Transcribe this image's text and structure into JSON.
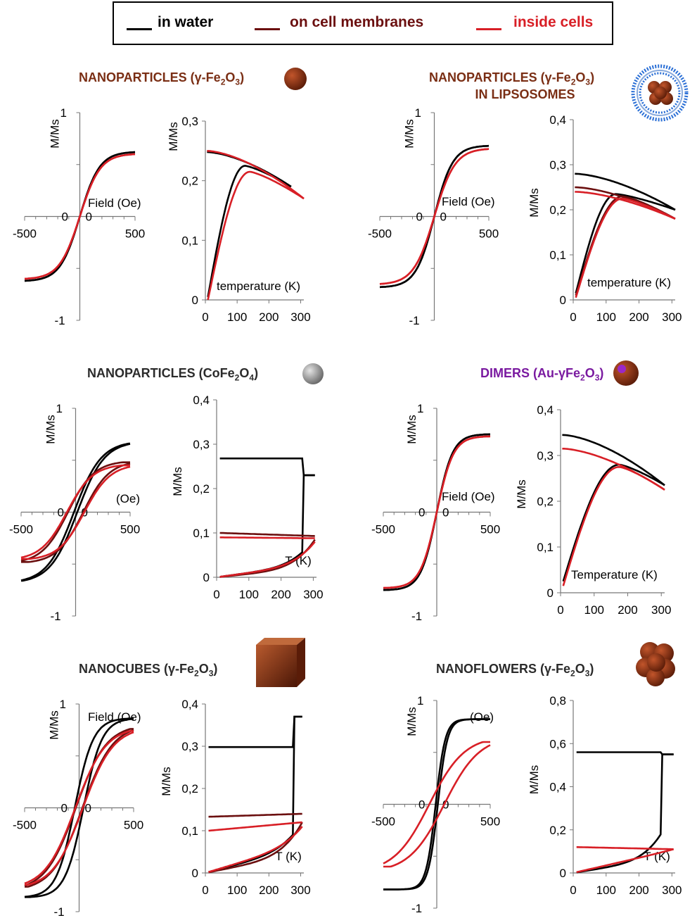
{
  "colors": {
    "water": "#000000",
    "membranes": "#6b0f0f",
    "inside": "#d81f26",
    "title_brown": "#7a2e14",
    "title_dark": "#2b2b2b",
    "title_purple": "#7a1aa0"
  },
  "legend": [
    {
      "label": "in water",
      "color": "#000000"
    },
    {
      "label": "on cell membranes",
      "color": "#6b0f0f"
    },
    {
      "label": "inside cells",
      "color": "#d81f26"
    }
  ],
  "panels": [
    {
      "title": "NANOPARTICLES (γ-Fe",
      "sub": "2",
      "title2": "O",
      "sub2": "3",
      "title3": ")",
      "line2": "",
      "color": "#7a2e14",
      "icon": "nanoparticle-sphere-icon"
    },
    {
      "title": "NANOPARTICLES (γ-Fe",
      "sub": "2",
      "title2": "O",
      "sub2": "3",
      "title3": ")",
      "line2": "IN LIPSOSOMES",
      "color": "#7a2e14",
      "icon": "liposome-icon"
    },
    {
      "title": "NANOPARTICLES (CoFe",
      "sub": "2",
      "title2": "O",
      "sub2": "4",
      "title3": ")",
      "line2": "",
      "color": "#2b2b2b",
      "icon": "cobalt-ferrite-sphere-icon"
    },
    {
      "title": "DIMERS (Au-γFe",
      "sub": "2",
      "title2": "O",
      "sub2": "3",
      "title3": ")",
      "line2": "",
      "color": "#7a1aa0",
      "icon": "dimer-sphere-icon"
    },
    {
      "title": "NANOCUBES (γ-Fe",
      "sub": "2",
      "title2": "O",
      "sub2": "3",
      "title3": ")",
      "line2": "",
      "color": "#2b2b2b",
      "icon": "nanocube-icon"
    },
    {
      "title": "NANOFLOWERS (γ-Fe",
      "sub": "2",
      "title2": "O",
      "sub2": "3",
      "title3": ")",
      "line2": "",
      "color": "#2b2b2b",
      "icon": "nanoflower-icon"
    }
  ],
  "chart_data": [
    {
      "type": "line",
      "panel": 1,
      "kind": "hysteresis",
      "ylabel": "M/Ms",
      "xlabel": "Field (Oe)",
      "xticks": [
        "-500",
        "0",
        "500"
      ],
      "yticks": [
        "1",
        "0",
        "-1"
      ],
      "xlim": [
        -500,
        500
      ],
      "ylim": [
        -1,
        1
      ],
      "series": [
        {
          "color": "#000000",
          "ms": 0.62,
          "w": 180,
          "hc": 0
        },
        {
          "color": "#d81f26",
          "ms": 0.6,
          "w": 185,
          "hc": 0
        }
      ]
    },
    {
      "type": "line",
      "panel": 1,
      "kind": "zfcfc",
      "ylabel": "M/Ms",
      "xlabel": "temperature (K)",
      "xticks": [
        "0",
        "100",
        "200",
        "300"
      ],
      "yticks": [
        "0,3",
        "0,2",
        "0,1",
        "0"
      ],
      "xlim": [
        0,
        310
      ],
      "ylim": [
        0,
        0.3
      ],
      "series": [
        {
          "color": "#000000",
          "fc0": 0.248,
          "tmax": 270,
          "fcEnd": 0.19,
          "tb": 125,
          "zfc0": 0.005,
          "peak": 0.225
        },
        {
          "color": "#d81f26",
          "fc0": 0.25,
          "tmax": 310,
          "fcEnd": 0.17,
          "tb": 140,
          "zfc0": 0.0,
          "peak": 0.215
        }
      ]
    },
    {
      "type": "line",
      "panel": 2,
      "kind": "hysteresis",
      "ylabel": "M/Ms",
      "xlabel": "Field (Oe)",
      "xticks": [
        "-500",
        "0",
        "500"
      ],
      "yticks": [
        "1",
        "0",
        "-1"
      ],
      "xlim": [
        -500,
        500
      ],
      "ylim": [
        -1,
        1
      ],
      "series": [
        {
          "color": "#000000",
          "ms": 0.68,
          "w": 170,
          "hc": 0
        },
        {
          "color": "#d81f26",
          "ms": 0.65,
          "w": 190,
          "hc": 0
        }
      ]
    },
    {
      "type": "line",
      "panel": 2,
      "kind": "zfcfc",
      "ylabel": "M/Ms",
      "xlabel": "temperature (K)",
      "xticks": [
        "0",
        "100",
        "200",
        "300"
      ],
      "yticks": [
        "0,4",
        "0,3",
        "0,2",
        "0,1",
        "0"
      ],
      "xlim": [
        0,
        310
      ],
      "ylim": [
        0,
        0.4
      ],
      "series": [
        {
          "color": "#000000",
          "fc0": 0.28,
          "tmax": 310,
          "fcEnd": 0.2,
          "tb": 130,
          "zfc0": 0.015,
          "peak": 0.235
        },
        {
          "color": "#6b0f0f",
          "fc0": 0.25,
          "tmax": 310,
          "fcEnd": 0.18,
          "tb": 150,
          "zfc0": 0.01,
          "peak": 0.23
        },
        {
          "color": "#d81f26",
          "fc0": 0.24,
          "tmax": 310,
          "fcEnd": 0.18,
          "tb": 150,
          "zfc0": 0.005,
          "peak": 0.225
        }
      ]
    },
    {
      "type": "line",
      "panel": 3,
      "kind": "hysteresis",
      "ylabel": "M/Ms",
      "xlabel": "(Oe)",
      "xticks": [
        "-500",
        "0",
        "500"
      ],
      "yticks": [
        "1",
        "0",
        "-1"
      ],
      "xlim": [
        -500,
        500
      ],
      "ylim": [
        -1,
        1
      ],
      "series": [
        {
          "color": "#000000",
          "ms": 0.66,
          "w": 250,
          "hc": 15
        },
        {
          "color": "#6b0f0f",
          "ms": 0.48,
          "w": 240,
          "hc": 70
        },
        {
          "color": "#d81f26",
          "ms": 0.45,
          "w": 240,
          "hc": 80
        }
      ]
    },
    {
      "type": "line",
      "panel": 3,
      "kind": "block",
      "ylabel": "M/Ms",
      "xlabel": "T (K)",
      "xticks": [
        "0",
        "100",
        "200",
        "300"
      ],
      "yticks": [
        "0,4",
        "0,3",
        "0,2",
        "0,1",
        "0"
      ],
      "xlim": [
        0,
        310
      ],
      "ylim": [
        0,
        0.4
      ],
      "series": [
        {
          "color": "#000000",
          "fc0": 0.268,
          "fcEnd": 0.23,
          "tj": 268,
          "zfcMid": 0.02,
          "zfcEnd": 0.09
        },
        {
          "color": "#6b0f0f",
          "fc0": 0.1,
          "fcEnd": 0.093,
          "tj": 0,
          "zfcMid": 0.015,
          "zfcEnd": 0.085
        },
        {
          "color": "#d81f26",
          "fc0": 0.09,
          "fcEnd": 0.088,
          "tj": 0,
          "zfcMid": 0.02,
          "zfcEnd": 0.08
        }
      ]
    },
    {
      "type": "line",
      "panel": 4,
      "kind": "hysteresis",
      "ylabel": "M/Ms",
      "xlabel": "Field (Oe)",
      "xticks": [
        "-500",
        "0",
        "500"
      ],
      "yticks": [
        "1",
        "0",
        "-1"
      ],
      "xlim": [
        -500,
        500
      ],
      "ylim": [
        -1,
        1
      ],
      "series": [
        {
          "color": "#000000",
          "ms": 0.75,
          "w": 150,
          "hc": 0
        },
        {
          "color": "#d81f26",
          "ms": 0.73,
          "w": 155,
          "hc": 0
        }
      ]
    },
    {
      "type": "line",
      "panel": 4,
      "kind": "zfcfc",
      "ylabel": "M/Ms",
      "xlabel": "Temperature (K)",
      "xticks": [
        "0",
        "100",
        "200",
        "300"
      ],
      "yticks": [
        "0,4",
        "0,3",
        "0,2",
        "0,1",
        "0"
      ],
      "xlim": [
        0,
        310
      ],
      "ylim": [
        0,
        0.4
      ],
      "series": [
        {
          "color": "#000000",
          "fc0": 0.345,
          "tmax": 310,
          "fcEnd": 0.235,
          "tb": 175,
          "zfc0": 0.025,
          "peak": 0.28
        },
        {
          "color": "#d81f26",
          "fc0": 0.315,
          "tmax": 310,
          "fcEnd": 0.225,
          "tb": 175,
          "zfc0": 0.015,
          "peak": 0.275
        }
      ]
    },
    {
      "type": "line",
      "panel": 5,
      "kind": "hysteresis",
      "ylabel": "M/Ms",
      "xlabel": "Field (Oe)",
      "xticks": [
        "-500",
        "0",
        "500"
      ],
      "yticks": [
        "1",
        "0",
        "-1"
      ],
      "xlim": [
        -500,
        500
      ],
      "ylim": [
        -1,
        1
      ],
      "series": [
        {
          "color": "#000000",
          "ms": 0.86,
          "w": 170,
          "hc": 40
        },
        {
          "color": "#6b0f0f",
          "ms": 0.76,
          "w": 280,
          "hc": 30
        },
        {
          "color": "#d81f26",
          "ms": 0.74,
          "w": 280,
          "hc": 35
        }
      ]
    },
    {
      "type": "line",
      "panel": 5,
      "kind": "block",
      "ylabel": "M/Ms",
      "xlabel": "T (K)",
      "xticks": [
        "0",
        "100",
        "200",
        "300"
      ],
      "yticks": [
        "0,4",
        "0,3",
        "0,2",
        "0,1",
        "0"
      ],
      "xlim": [
        0,
        310
      ],
      "ylim": [
        0,
        0.4
      ],
      "series": [
        {
          "color": "#000000",
          "fc0": 0.298,
          "fcEnd": 0.37,
          "tj": 280,
          "zfcMid": 0.04,
          "zfcEnd": 0.12
        },
        {
          "color": "#6b0f0f",
          "fc0": 0.133,
          "fcEnd": 0.14,
          "tj": 0,
          "zfcMid": 0.03,
          "zfcEnd": 0.12
        },
        {
          "color": "#d81f26",
          "fc0": 0.1,
          "fcEnd": 0.12,
          "tj": 0,
          "zfcMid": 0.045,
          "zfcEnd": 0.11
        }
      ]
    },
    {
      "type": "line",
      "panel": 6,
      "kind": "hysteresis",
      "ylabel": "M/Ms",
      "xlabel": "(Oe)",
      "xticks": [
        "-500",
        "0",
        "500"
      ],
      "yticks": [
        "1",
        "0",
        "-1"
      ],
      "xlim": [
        -500,
        500
      ],
      "ylim": [
        -1,
        1
      ],
      "series": [
        {
          "color": "#000000",
          "ms": 0.82,
          "w": 90,
          "hc": 10
        },
        {
          "color": "#d81f26",
          "ms": 0.6,
          "w": 330,
          "hc": 70
        }
      ]
    },
    {
      "type": "line",
      "panel": 6,
      "kind": "block",
      "ylabel": "M/Ms",
      "xlabel": "T (K)",
      "xticks": [
        "0",
        "100",
        "200",
        "300"
      ],
      "yticks": [
        "0,8",
        "0,6",
        "0,4",
        "0,2",
        "0"
      ],
      "xlim": [
        0,
        310
      ],
      "ylim": [
        0,
        0.8
      ],
      "series": [
        {
          "color": "#000000",
          "fc0": 0.56,
          "fcEnd": 0.55,
          "tj": 270,
          "zfcMid": 0.05,
          "zfcEnd": 0.3
        },
        {
          "color": "#d81f26",
          "fc0": 0.12,
          "fcEnd": 0.11,
          "tj": 0,
          "zfcMid": 0.07,
          "zfcEnd": 0.11
        }
      ]
    }
  ]
}
